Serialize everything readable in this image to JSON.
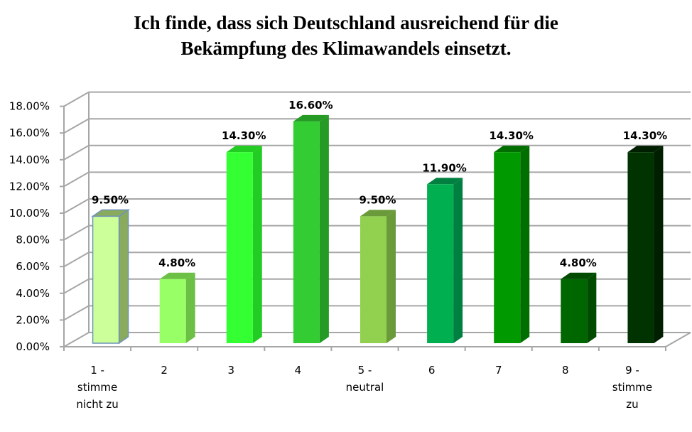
{
  "chart_data": {
    "type": "bar",
    "style": "3d-column",
    "title_lines": [
      "Ich finde, dass sich Deutschland ausreichend für die",
      "Bekämpfung des Klimawandels einsetzt."
    ],
    "categories": [
      [
        "1 -",
        "stimme",
        "nicht zu"
      ],
      [
        "2"
      ],
      [
        "3"
      ],
      [
        "4"
      ],
      [
        "5 -",
        "neutral"
      ],
      [
        "6"
      ],
      [
        "7"
      ],
      [
        "8"
      ],
      [
        "9 -",
        "stimme",
        "zu"
      ]
    ],
    "values": [
      9.5,
      4.8,
      14.3,
      16.6,
      9.5,
      11.9,
      14.3,
      4.8,
      14.3
    ],
    "data_labels": [
      "9.50%",
      "4.80%",
      "14.30%",
      "16.60%",
      "9.50%",
      "11.90%",
      "14.30%",
      "4.80%",
      "14.30%"
    ],
    "y_ticks": [
      "0.00%",
      "2.00%",
      "4.00%",
      "6.00%",
      "8.00%",
      "10.00%",
      "12.00%",
      "14.00%",
      "16.00%",
      "18.00%"
    ],
    "ylim": [
      0,
      18
    ],
    "grid": true,
    "legend": "none",
    "bar_colors": [
      "#ccff99",
      "#99ff66",
      "#33ff33",
      "#33cc33",
      "#92d050",
      "#00b050",
      "#009900",
      "#006600",
      "#003300"
    ],
    "side_colors": [
      "#8aab5e",
      "#6cc046",
      "#22cc22",
      "#259a25",
      "#6a9a3a",
      "#008040",
      "#006f00",
      "#004b00",
      "#001f00"
    ]
  }
}
